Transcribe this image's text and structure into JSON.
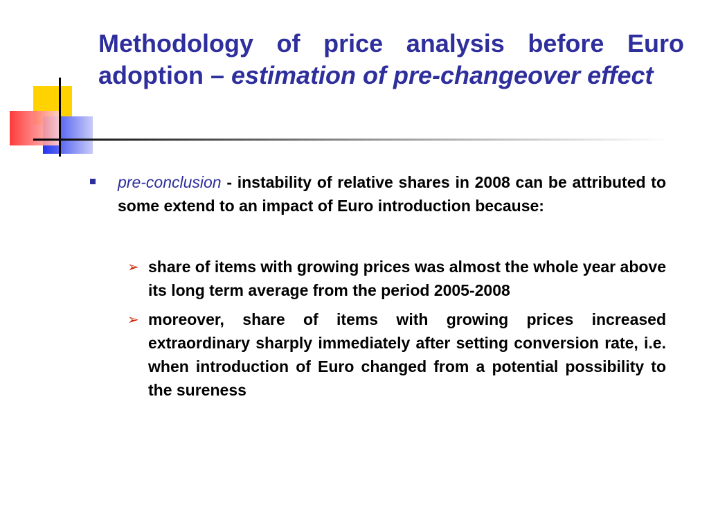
{
  "slide": {
    "title_part1": "Methodology of price analysis before Euro adoption – ",
    "title_part2": "estimation of pre-changeover effect",
    "bullet": {
      "lead": "pre-conclusion",
      "text": " - instability of relative shares in 2008 can be attributed to some extend to an impact of Euro introduction because:"
    },
    "sub_bullets": [
      "share of items with growing prices was almost the whole year above its long term average from the period 2005-2008",
      "moreover, share of items with growing prices increased extraordinary sharply immediately after setting conversion rate, i.e. when introduction of Euro changed from a potential possibility to the sureness"
    ]
  },
  "colors": {
    "title": "#2e2e9c",
    "bullet_square": "#2e2e9c",
    "arrow": "#cc2200",
    "deco_yellow": "#ffd200",
    "deco_blue": "#2233ee",
    "deco_red": "#ff3333"
  },
  "icons": {
    "level1_bullet": "square-bullet-icon",
    "level2_bullet": "arrow-bullet-icon"
  }
}
